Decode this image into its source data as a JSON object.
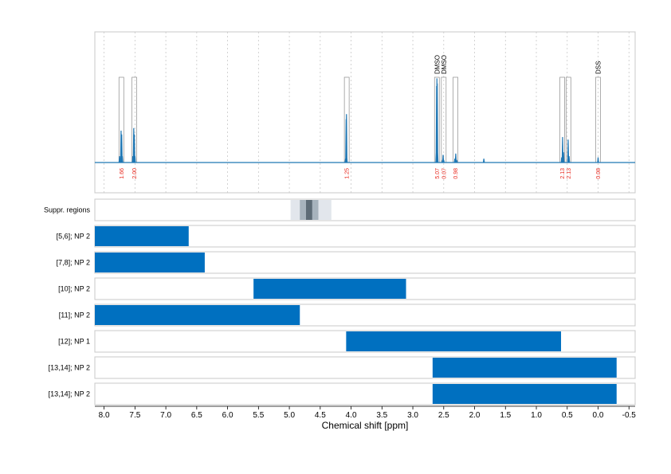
{
  "chart_data": {
    "type": "nmr-spectrum-with-range-bars",
    "x_axis": {
      "label": "Chemical shift [ppm]",
      "range": [
        8.15,
        -0.6
      ],
      "reversed": true,
      "ticks": [
        8.0,
        7.5,
        7.0,
        6.5,
        6.0,
        5.5,
        5.0,
        4.5,
        4.0,
        3.5,
        3.0,
        2.5,
        2.0,
        1.5,
        1.0,
        0.5,
        0.0,
        -0.5
      ],
      "tick_labels": [
        "8.0",
        "7.5",
        "7.0",
        "6.5",
        "6.0",
        "5.5",
        "5.0",
        "4.5",
        "4.0",
        "3.5",
        "3.0",
        "2.5",
        "2.0",
        "1.5",
        "1.0",
        "0.5",
        "0.0",
        "-0.5"
      ]
    },
    "spectrum": {
      "color": "#1f77b4",
      "baseline": 0,
      "points": [
        [
          7.75,
          0.05
        ],
        [
          7.725,
          0.25
        ],
        [
          7.715,
          0.22
        ],
        [
          7.705,
          0.05
        ],
        [
          7.535,
          0.05
        ],
        [
          7.52,
          0.27
        ],
        [
          7.51,
          0.22
        ],
        [
          7.5,
          0.05
        ],
        [
          4.09,
          0.03
        ],
        [
          4.08,
          0.34
        ],
        [
          4.075,
          0.38
        ],
        [
          4.07,
          0.05
        ],
        [
          2.62,
          0.1
        ],
        [
          2.615,
          0.6
        ],
        [
          2.61,
          0.66
        ],
        [
          2.605,
          0.62
        ],
        [
          2.6,
          0.1
        ],
        [
          2.52,
          0.02
        ],
        [
          2.51,
          0.06
        ],
        [
          2.5,
          0.02
        ],
        [
          2.32,
          0.03
        ],
        [
          2.305,
          0.07
        ],
        [
          2.29,
          0.02
        ],
        [
          1.85,
          0.03
        ],
        [
          0.59,
          0.04
        ],
        [
          0.575,
          0.2
        ],
        [
          0.56,
          0.08
        ],
        [
          0.485,
          0.18
        ],
        [
          0.47,
          0.05
        ],
        [
          0.0,
          0.04
        ]
      ]
    },
    "peaks": [
      {
        "center": 7.72,
        "integral": "1.66"
      },
      {
        "center": 7.51,
        "integral": "2.00"
      },
      {
        "center": 4.07,
        "integral": "1.25"
      },
      {
        "center": 2.61,
        "integral": "5.07",
        "name": "DMSO"
      },
      {
        "center": 2.5,
        "integral": "0.07",
        "name": "DMSO"
      },
      {
        "center": 2.31,
        "integral": "0.98"
      },
      {
        "center": 0.58,
        "integral": "2.13"
      },
      {
        "center": 0.48,
        "integral": "2.13"
      },
      {
        "center": 0.0,
        "integral": "0.08",
        "name": "DSS"
      }
    ],
    "suppression": {
      "label": "Suppr. regions",
      "outer": [
        4.98,
        4.32
      ],
      "inner": [
        4.83,
        4.53
      ],
      "core": [
        4.73,
        4.63
      ]
    },
    "ranges": [
      {
        "label": "[5,6]; NP 2",
        "from": 8.15,
        "to": 6.63
      },
      {
        "label": "[7,8]; NP 2",
        "from": 8.15,
        "to": 6.37
      },
      {
        "label": "[10]; NP 2",
        "from": 5.58,
        "to": 3.11
      },
      {
        "label": "[11]; NP 2",
        "from": 8.15,
        "to": 4.83
      },
      {
        "label": "[12]; NP 1",
        "from": 4.08,
        "to": 0.6
      },
      {
        "label": "[13,14]; NP 2",
        "from": 2.68,
        "to": -0.3
      },
      {
        "label": "[13,14]; NP 2",
        "from": 2.68,
        "to": -0.3
      }
    ],
    "colors": {
      "bar": "#0070c0",
      "integral_text": "#e8281e",
      "suppr_outer": "#e2e6ec",
      "suppr_inner": "#a7b3bd",
      "suppr_core": "#5d6b76"
    }
  }
}
